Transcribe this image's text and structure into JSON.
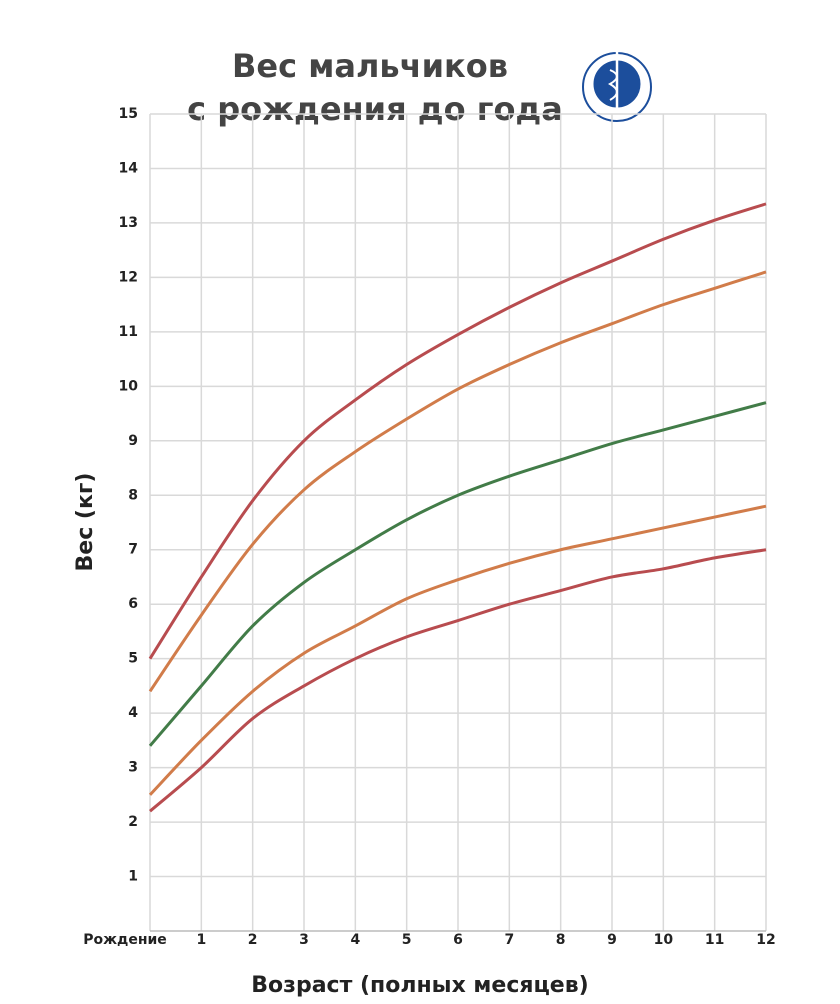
{
  "chart_data": {
    "type": "line",
    "title": "Вес мальчиков",
    "subtitle": "с рождения до года",
    "y_label": "Вес (кг)",
    "x_label": "Возраст (полных месяцев)",
    "x": [
      0,
      1,
      2,
      3,
      4,
      5,
      6,
      7,
      8,
      9,
      10,
      11,
      12
    ],
    "xlim": [
      0,
      12
    ],
    "xticks": [
      {
        "value": 0,
        "label": "Рождение"
      },
      1,
      2,
      3,
      4,
      5,
      6,
      7,
      8,
      9,
      10,
      11,
      12
    ],
    "ylim": [
      0,
      15
    ],
    "yticks": [
      1,
      2,
      3,
      4,
      5,
      6,
      7,
      8,
      9,
      10,
      11,
      12,
      13,
      14,
      15
    ],
    "grid": true,
    "series": [
      {
        "color": "#b84c4f",
        "values": [
          2.2,
          3.0,
          3.9,
          4.5,
          5.0,
          5.4,
          5.7,
          6.0,
          6.25,
          6.5,
          6.65,
          6.85,
          7.0
        ]
      },
      {
        "color": "#d17c4a",
        "values": [
          2.5,
          3.5,
          4.4,
          5.1,
          5.6,
          6.1,
          6.45,
          6.75,
          7.0,
          7.2,
          7.4,
          7.6,
          7.8
        ]
      },
      {
        "color": "#427c48",
        "values": [
          3.4,
          4.5,
          5.6,
          6.4,
          7.0,
          7.55,
          8.0,
          8.35,
          8.65,
          8.95,
          9.2,
          9.45,
          9.7
        ]
      },
      {
        "color": "#d17c4a",
        "values": [
          4.4,
          5.8,
          7.1,
          8.1,
          8.8,
          9.4,
          9.95,
          10.4,
          10.8,
          11.15,
          11.5,
          11.8,
          12.1
        ]
      },
      {
        "color": "#b84c4f",
        "values": [
          5.0,
          6.5,
          7.9,
          9.0,
          9.75,
          10.4,
          10.95,
          11.45,
          11.9,
          12.3,
          12.7,
          13.05,
          13.35
        ]
      }
    ]
  }
}
